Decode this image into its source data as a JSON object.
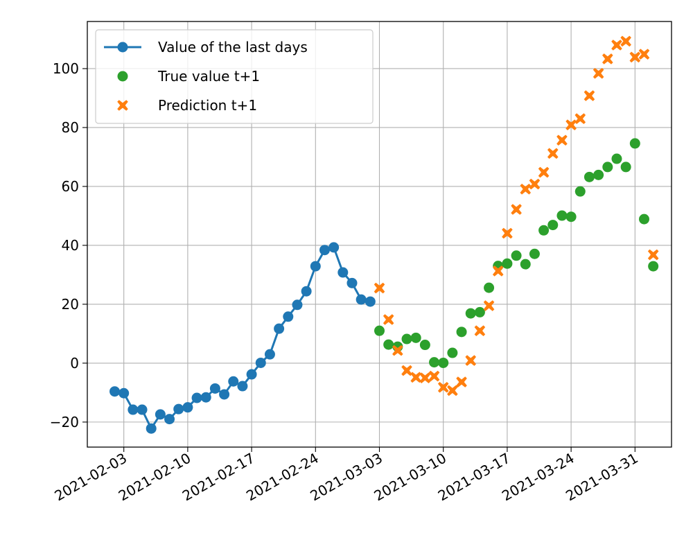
{
  "chart_data": {
    "type": "line",
    "title": "",
    "xlabel": "",
    "ylabel": "",
    "x_scale": "date",
    "xlim": [
      "2021-01-30",
      "2021-04-04"
    ],
    "ylim": [
      -28.5,
      116
    ],
    "x_ticks": [
      "2021-02-03",
      "2021-02-10",
      "2021-02-17",
      "2021-02-24",
      "2021-03-03",
      "2021-03-10",
      "2021-03-17",
      "2021-03-24",
      "2021-03-31"
    ],
    "y_ticks": [
      -20,
      0,
      20,
      40,
      60,
      80,
      100
    ],
    "y_tick_labels": [
      "−20",
      "0",
      "20",
      "40",
      "60",
      "80",
      "100"
    ],
    "grid": true,
    "legend_position": "top-left",
    "series": [
      {
        "name": "Value of the last days",
        "marker": "circle",
        "line": true,
        "color": "#1f77b4",
        "points": [
          {
            "x": "2021-02-02",
            "y": -9.6
          },
          {
            "x": "2021-02-03",
            "y": -10.2
          },
          {
            "x": "2021-02-04",
            "y": -15.8
          },
          {
            "x": "2021-02-05",
            "y": -15.8
          },
          {
            "x": "2021-02-06",
            "y": -22.2
          },
          {
            "x": "2021-02-07",
            "y": -17.4
          },
          {
            "x": "2021-02-08",
            "y": -19.0
          },
          {
            "x": "2021-02-09",
            "y": -15.6
          },
          {
            "x": "2021-02-10",
            "y": -15.0
          },
          {
            "x": "2021-02-11",
            "y": -11.8
          },
          {
            "x": "2021-02-12",
            "y": -11.6
          },
          {
            "x": "2021-02-13",
            "y": -8.6
          },
          {
            "x": "2021-02-14",
            "y": -10.6
          },
          {
            "x": "2021-02-15",
            "y": -6.2
          },
          {
            "x": "2021-02-16",
            "y": -7.8
          },
          {
            "x": "2021-02-17",
            "y": -3.8
          },
          {
            "x": "2021-02-18",
            "y": 0.1
          },
          {
            "x": "2021-02-19",
            "y": 3.0
          },
          {
            "x": "2021-02-20",
            "y": 11.7
          },
          {
            "x": "2021-02-21",
            "y": 15.8
          },
          {
            "x": "2021-02-22",
            "y": 19.8
          },
          {
            "x": "2021-02-23",
            "y": 24.4
          },
          {
            "x": "2021-02-24",
            "y": 32.9
          },
          {
            "x": "2021-02-25",
            "y": 38.4
          },
          {
            "x": "2021-02-26",
            "y": 39.3
          },
          {
            "x": "2021-02-27",
            "y": 30.8
          },
          {
            "x": "2021-02-28",
            "y": 27.2
          },
          {
            "x": "2021-03-01",
            "y": 21.6
          },
          {
            "x": "2021-03-02",
            "y": 20.9
          }
        ]
      },
      {
        "name": "True value t+1",
        "marker": "circle",
        "line": false,
        "color": "#2ca02c",
        "points": [
          {
            "x": "2021-03-03",
            "y": 11.0
          },
          {
            "x": "2021-03-04",
            "y": 6.3
          },
          {
            "x": "2021-03-05",
            "y": 5.6
          },
          {
            "x": "2021-03-06",
            "y": 8.2
          },
          {
            "x": "2021-03-07",
            "y": 8.6
          },
          {
            "x": "2021-03-08",
            "y": 6.2
          },
          {
            "x": "2021-03-09",
            "y": 0.3
          },
          {
            "x": "2021-03-10",
            "y": 0.1
          },
          {
            "x": "2021-03-11",
            "y": 3.5
          },
          {
            "x": "2021-03-12",
            "y": 10.6
          },
          {
            "x": "2021-03-13",
            "y": 16.9
          },
          {
            "x": "2021-03-14",
            "y": 17.3
          },
          {
            "x": "2021-03-15",
            "y": 25.6
          },
          {
            "x": "2021-03-16",
            "y": 33.0
          },
          {
            "x": "2021-03-17",
            "y": 33.8
          },
          {
            "x": "2021-03-18",
            "y": 36.5
          },
          {
            "x": "2021-03-19",
            "y": 33.6
          },
          {
            "x": "2021-03-20",
            "y": 37.1
          },
          {
            "x": "2021-03-21",
            "y": 45.1
          },
          {
            "x": "2021-03-22",
            "y": 46.9
          },
          {
            "x": "2021-03-23",
            "y": 50.1
          },
          {
            "x": "2021-03-24",
            "y": 49.7
          },
          {
            "x": "2021-03-25",
            "y": 58.3
          },
          {
            "x": "2021-03-26",
            "y": 63.2
          },
          {
            "x": "2021-03-27",
            "y": 63.9
          },
          {
            "x": "2021-03-28",
            "y": 66.6
          },
          {
            "x": "2021-03-29",
            "y": 69.4
          },
          {
            "x": "2021-03-30",
            "y": 66.6
          },
          {
            "x": "2021-03-31",
            "y": 74.6
          },
          {
            "x": "2021-04-01",
            "y": 48.9
          },
          {
            "x": "2021-04-02",
            "y": 32.9
          }
        ]
      },
      {
        "name": "Prediction t+1",
        "marker": "x-filled",
        "line": false,
        "color": "#ff7f0e",
        "points": [
          {
            "x": "2021-03-03",
            "y": 25.5
          },
          {
            "x": "2021-03-04",
            "y": 14.8
          },
          {
            "x": "2021-03-05",
            "y": 4.3
          },
          {
            "x": "2021-03-06",
            "y": -2.5
          },
          {
            "x": "2021-03-07",
            "y": -4.8
          },
          {
            "x": "2021-03-08",
            "y": -5.0
          },
          {
            "x": "2021-03-09",
            "y": -4.4
          },
          {
            "x": "2021-03-10",
            "y": -8.2
          },
          {
            "x": "2021-03-11",
            "y": -9.3
          },
          {
            "x": "2021-03-12",
            "y": -6.4
          },
          {
            "x": "2021-03-13",
            "y": 0.9
          },
          {
            "x": "2021-03-14",
            "y": 11.0
          },
          {
            "x": "2021-03-15",
            "y": 19.5
          },
          {
            "x": "2021-03-16",
            "y": 31.3
          },
          {
            "x": "2021-03-17",
            "y": 44.1
          },
          {
            "x": "2021-03-18",
            "y": 52.2
          },
          {
            "x": "2021-03-19",
            "y": 59.1
          },
          {
            "x": "2021-03-20",
            "y": 60.8
          },
          {
            "x": "2021-03-21",
            "y": 64.8
          },
          {
            "x": "2021-03-22",
            "y": 71.2
          },
          {
            "x": "2021-03-23",
            "y": 75.7
          },
          {
            "x": "2021-03-24",
            "y": 80.9
          },
          {
            "x": "2021-03-25",
            "y": 83.0
          },
          {
            "x": "2021-03-26",
            "y": 90.8
          },
          {
            "x": "2021-03-27",
            "y": 98.4
          },
          {
            "x": "2021-03-28",
            "y": 103.3
          },
          {
            "x": "2021-03-29",
            "y": 108.0
          },
          {
            "x": "2021-03-30",
            "y": 109.3
          },
          {
            "x": "2021-03-31",
            "y": 103.9
          },
          {
            "x": "2021-04-01",
            "y": 104.9
          },
          {
            "x": "2021-04-02",
            "y": 36.8
          }
        ]
      }
    ]
  }
}
